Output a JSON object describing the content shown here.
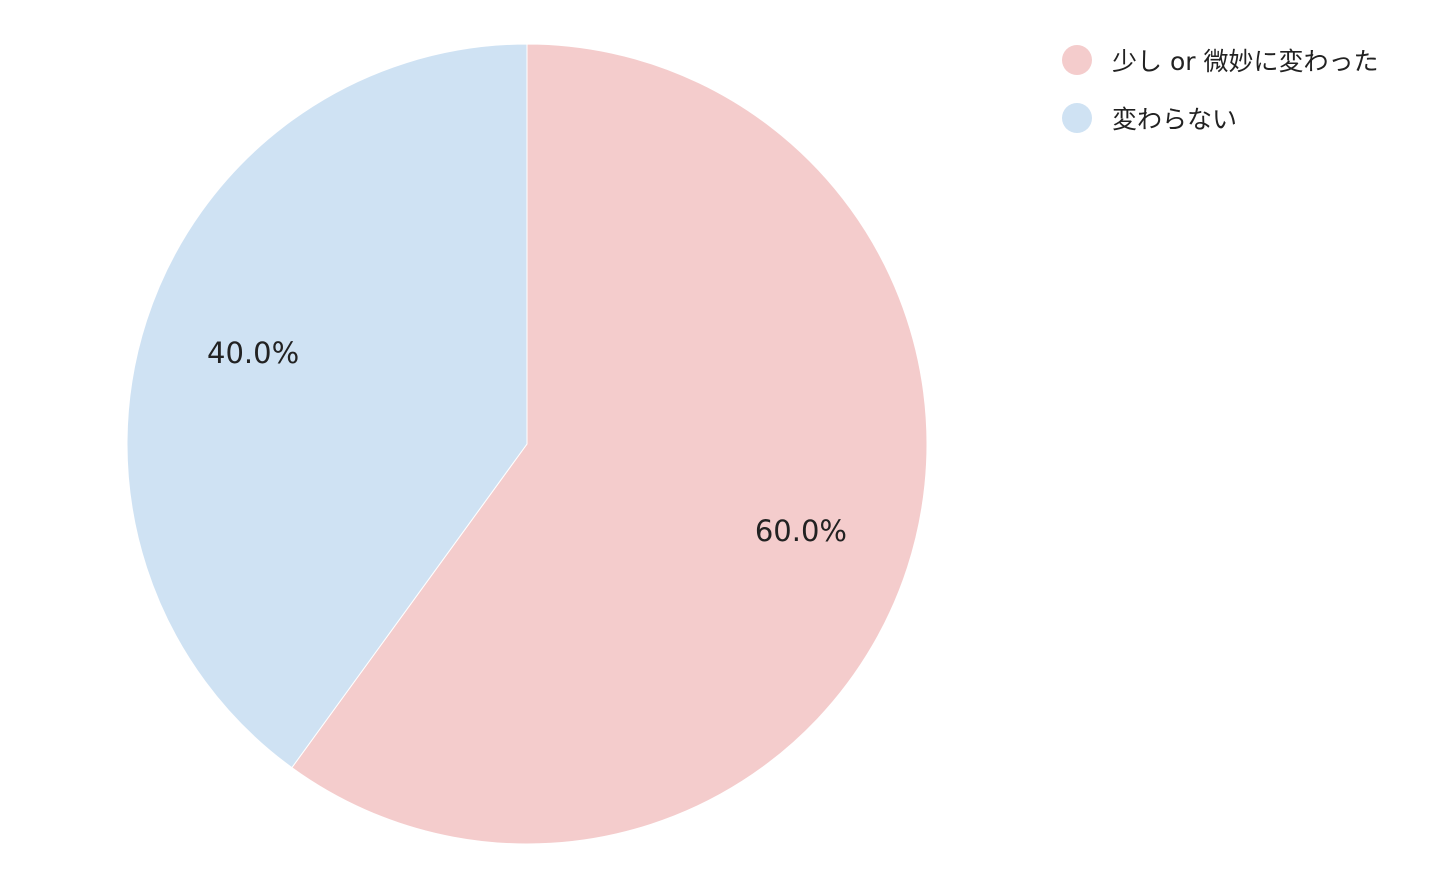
{
  "chart_data": {
    "type": "pie",
    "title": "",
    "slices": [
      {
        "label": "少し or 微妙に変わった",
        "value": 60.0,
        "display": "60.0%",
        "color": "#f4cccc"
      },
      {
        "label": "変わらない",
        "value": 40.0,
        "display": "40.0%",
        "color": "#cfe2f3"
      }
    ],
    "legend_placement": "top-right",
    "start_angle": "top",
    "direction": "clockwise"
  }
}
